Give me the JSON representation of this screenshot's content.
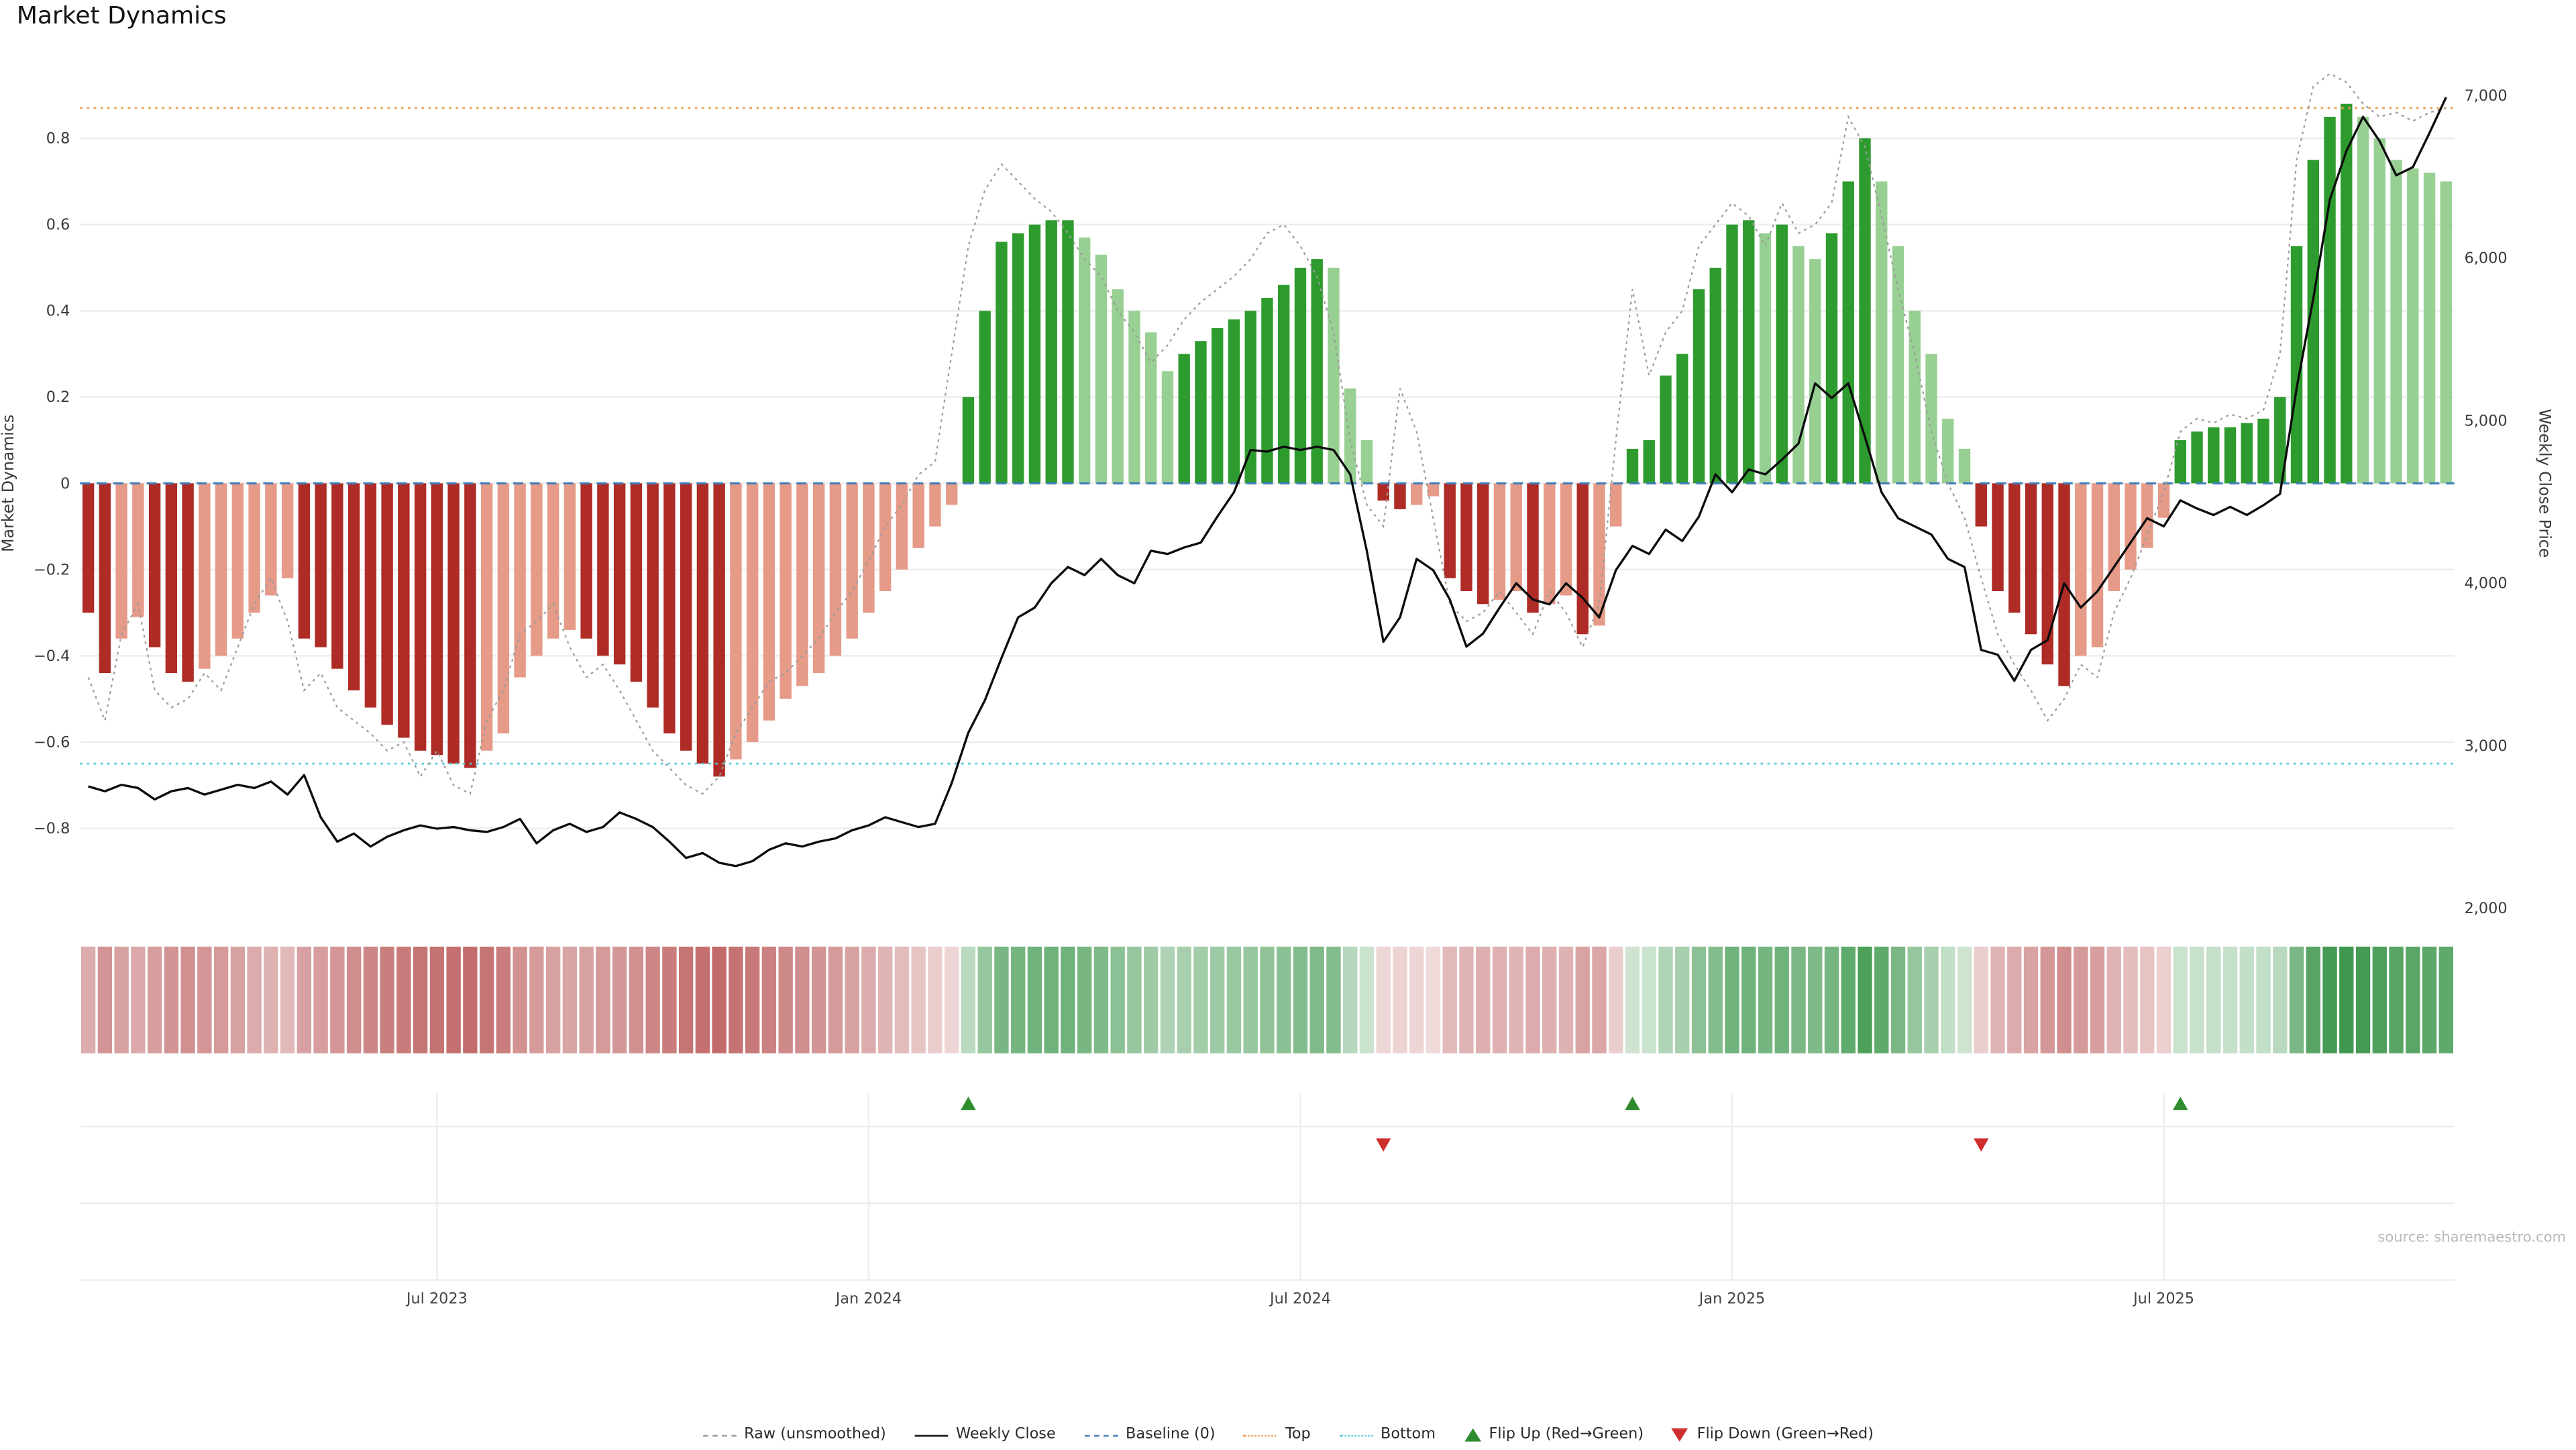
{
  "title": "Market Dynamics",
  "source": "source: sharemaestro.com",
  "left_axis": {
    "label": "Market Dynamics",
    "ticks": [
      {
        "value": 0.8,
        "label": "0.8"
      },
      {
        "value": 0.6,
        "label": "0.6"
      },
      {
        "value": 0.4,
        "label": "0.4"
      },
      {
        "value": 0.2,
        "label": "0.2"
      },
      {
        "value": 0.0,
        "label": "0"
      },
      {
        "value": -0.2,
        "label": "−0.2"
      },
      {
        "value": -0.4,
        "label": "−0.4"
      },
      {
        "value": -0.6,
        "label": "−0.6"
      },
      {
        "value": -0.8,
        "label": "−0.8"
      }
    ]
  },
  "right_axis": {
    "label": "Weekly Close Price",
    "ticks": [
      {
        "value": 7000,
        "label": "7,000"
      },
      {
        "value": 6000,
        "label": "6,000"
      },
      {
        "value": 5000,
        "label": "5,000"
      },
      {
        "value": 4000,
        "label": "4,000"
      },
      {
        "value": 3000,
        "label": "3,000"
      },
      {
        "value": 2000,
        "label": "2,000"
      }
    ]
  },
  "legend": [
    {
      "label": "Raw (unsmoothed)"
    },
    {
      "label": "Weekly Close"
    },
    {
      "label": "Baseline (0)"
    },
    {
      "label": "Top"
    },
    {
      "label": "Bottom"
    },
    {
      "label": "Flip Up (Red→Green)"
    },
    {
      "label": "Flip Down (Green→Red)"
    }
  ],
  "colors": {
    "bar_dark_red": "#af2b26",
    "bar_light_red": "#e69a88",
    "bar_dark_green": "#2e9b2e",
    "bar_light_green": "#98d094",
    "close_line": "#0d0d0d",
    "raw_line": "#9c9c9c",
    "baseline": "#3f7cba",
    "top": "#e9a050",
    "bottom": "#52ccd6",
    "flip_up": "#2e8b2e",
    "flip_down": "#cf2e2e",
    "grid": "#ededed",
    "tick_text": "#3a3a3a",
    "x_tick_text": "#444444",
    "source_text": "#b8b8b8",
    "heat_red": [
      178,
      70,
      70
    ],
    "heat_green": [
      60,
      150,
      75
    ]
  },
  "chart_data": {
    "type": "combo",
    "description": "Weekly oscillator bars with heatmap strip, flip markers and overlaid price line",
    "n_points": 143,
    "x_ticks": [
      {
        "index": 21,
        "label": "Jul 2023"
      },
      {
        "index": 47,
        "label": "Jan 2024"
      },
      {
        "index": 73,
        "label": "Jul 2024"
      },
      {
        "index": 99,
        "label": "Jan 2025"
      },
      {
        "index": 125,
        "label": "Jul 2025"
      }
    ],
    "left_axis_range": [
      -0.95,
      0.95
    ],
    "right_axis_range": [
      2000,
      7000
    ],
    "reference_lines": {
      "baseline": 0,
      "top": 0.87,
      "bottom": -0.65
    },
    "flip_up_indices": [
      53,
      93,
      126
    ],
    "flip_down_indices": [
      78,
      114
    ],
    "heatmap_strip": "gradient cells encoding smoothed Market Dynamics value per week",
    "series": [
      {
        "name": "Market Dynamics (smoothed)",
        "type": "bar",
        "axis": "left",
        "values": [
          -0.3,
          -0.44,
          -0.36,
          -0.31,
          -0.38,
          -0.44,
          -0.46,
          -0.43,
          -0.4,
          -0.36,
          -0.3,
          -0.26,
          -0.22,
          -0.36,
          -0.38,
          -0.43,
          -0.48,
          -0.52,
          -0.56,
          -0.59,
          -0.62,
          -0.63,
          -0.65,
          -0.66,
          -0.62,
          -0.58,
          -0.45,
          -0.4,
          -0.36,
          -0.34,
          -0.36,
          -0.4,
          -0.42,
          -0.46,
          -0.52,
          -0.58,
          -0.62,
          -0.65,
          -0.68,
          -0.64,
          -0.6,
          -0.55,
          -0.5,
          -0.47,
          -0.44,
          -0.4,
          -0.36,
          -0.3,
          -0.25,
          -0.2,
          -0.15,
          -0.1,
          -0.05,
          0.2,
          0.4,
          0.56,
          0.58,
          0.6,
          0.61,
          0.61,
          0.57,
          0.53,
          0.45,
          0.4,
          0.35,
          0.26,
          0.3,
          0.33,
          0.36,
          0.38,
          0.4,
          0.43,
          0.46,
          0.5,
          0.52,
          0.5,
          0.22,
          0.1,
          -0.04,
          -0.06,
          -0.05,
          -0.03,
          -0.22,
          -0.25,
          -0.28,
          -0.27,
          -0.25,
          -0.3,
          -0.28,
          -0.26,
          -0.35,
          -0.33,
          -0.1,
          0.08,
          0.1,
          0.25,
          0.3,
          0.45,
          0.5,
          0.6,
          0.61,
          0.58,
          0.6,
          0.55,
          0.52,
          0.58,
          0.7,
          0.8,
          0.7,
          0.55,
          0.4,
          0.3,
          0.15,
          0.08,
          -0.1,
          -0.25,
          -0.3,
          -0.35,
          -0.42,
          -0.47,
          -0.4,
          -0.38,
          -0.25,
          -0.2,
          -0.15,
          -0.08,
          0.1,
          0.12,
          0.13,
          0.13,
          0.14,
          0.15,
          0.2,
          0.55,
          0.75,
          0.85,
          0.88,
          0.85,
          0.8,
          0.75,
          0.73,
          0.72,
          0.7
        ]
      },
      {
        "name": "Raw (unsmoothed)",
        "type": "line",
        "style": "dashed",
        "axis": "left",
        "values": [
          -0.45,
          -0.55,
          -0.35,
          -0.28,
          -0.48,
          -0.52,
          -0.5,
          -0.44,
          -0.48,
          -0.38,
          -0.28,
          -0.22,
          -0.32,
          -0.48,
          -0.44,
          -0.52,
          -0.55,
          -0.58,
          -0.62,
          -0.6,
          -0.68,
          -0.62,
          -0.7,
          -0.72,
          -0.55,
          -0.48,
          -0.35,
          -0.32,
          -0.28,
          -0.38,
          -0.45,
          -0.42,
          -0.48,
          -0.55,
          -0.62,
          -0.66,
          -0.7,
          -0.72,
          -0.68,
          -0.58,
          -0.52,
          -0.46,
          -0.44,
          -0.4,
          -0.36,
          -0.3,
          -0.25,
          -0.18,
          -0.1,
          -0.05,
          0.02,
          0.05,
          0.3,
          0.55,
          0.68,
          0.74,
          0.7,
          0.66,
          0.63,
          0.58,
          0.52,
          0.48,
          0.4,
          0.35,
          0.28,
          0.32,
          0.38,
          0.42,
          0.45,
          0.48,
          0.52,
          0.58,
          0.6,
          0.55,
          0.48,
          0.35,
          0.1,
          -0.05,
          -0.1,
          0.22,
          0.12,
          -0.08,
          -0.28,
          -0.32,
          -0.3,
          -0.25,
          -0.3,
          -0.35,
          -0.25,
          -0.3,
          -0.38,
          -0.28,
          0.1,
          0.45,
          0.25,
          0.35,
          0.4,
          0.55,
          0.6,
          0.65,
          0.62,
          0.55,
          0.65,
          0.58,
          0.6,
          0.65,
          0.85,
          0.78,
          0.62,
          0.45,
          0.3,
          0.12,
          0.0,
          -0.08,
          -0.22,
          -0.35,
          -0.42,
          -0.48,
          -0.55,
          -0.5,
          -0.42,
          -0.45,
          -0.3,
          -0.22,
          -0.12,
          -0.02,
          0.12,
          0.15,
          0.14,
          0.16,
          0.15,
          0.17,
          0.3,
          0.75,
          0.92,
          0.95,
          0.93,
          0.88,
          0.85,
          0.86,
          0.84,
          0.86,
          0.87
        ]
      },
      {
        "name": "Weekly Close",
        "type": "line",
        "axis": "right",
        "values": [
          2750,
          2720,
          2760,
          2740,
          2670,
          2720,
          2740,
          2700,
          2730,
          2760,
          2740,
          2780,
          2700,
          2820,
          2560,
          2410,
          2460,
          2380,
          2440,
          2480,
          2510,
          2490,
          2500,
          2480,
          2470,
          2500,
          2550,
          2400,
          2480,
          2520,
          2470,
          2500,
          2590,
          2550,
          2500,
          2410,
          2310,
          2340,
          2280,
          2260,
          2290,
          2360,
          2400,
          2380,
          2410,
          2430,
          2480,
          2510,
          2560,
          2530,
          2500,
          2520,
          2770,
          3080,
          3280,
          3540,
          3790,
          3850,
          4000,
          4100,
          4050,
          4150,
          4050,
          4000,
          4200,
          4180,
          4220,
          4250,
          4410,
          4560,
          4820,
          4810,
          4840,
          4820,
          4840,
          4820,
          4670,
          4200,
          3640,
          3790,
          4150,
          4080,
          3900,
          3610,
          3690,
          3850,
          4000,
          3900,
          3870,
          4000,
          3910,
          3790,
          4080,
          4230,
          4180,
          4330,
          4260,
          4410,
          4670,
          4560,
          4700,
          4670,
          4760,
          4860,
          5230,
          5140,
          5230,
          4900,
          4560,
          4400,
          4350,
          4300,
          4150,
          4100,
          3590,
          3560,
          3400,
          3590,
          3650,
          4000,
          3850,
          3950,
          4100,
          4250,
          4400,
          4350,
          4510,
          4460,
          4420,
          4470,
          4420,
          4480,
          4550,
          5200,
          5750,
          6360,
          6660,
          6870,
          6720,
          6510,
          6560,
          6770,
          6990
        ]
      }
    ]
  }
}
